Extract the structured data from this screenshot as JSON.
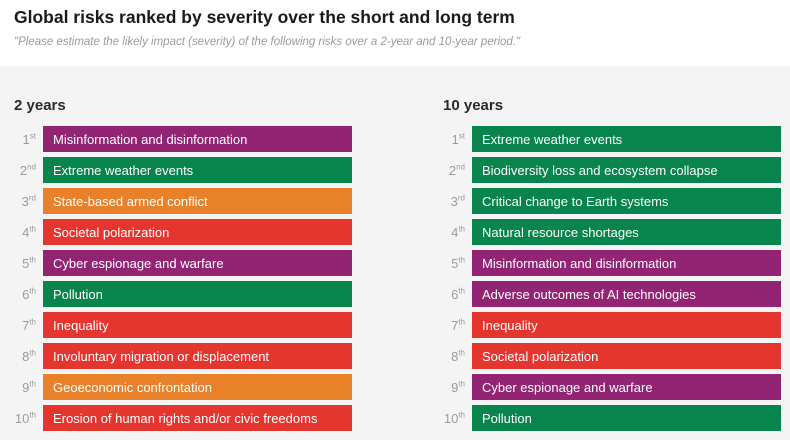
{
  "chart_data": {
    "type": "table",
    "subtype": "ranked-bar-list",
    "title": "Global risks ranked by severity over the short and long term",
    "subtitle": "\"Please estimate the likely impact (severity) of the following risks over a 2-year and 10-year period.\"",
    "panel_background": "#F4F4F5",
    "category_colors": {
      "technological_purple": "#932473",
      "environmental_green": "#07854C",
      "geopolitical_orange": "#E8812A",
      "societal_red": "#E5352F"
    },
    "panels": [
      {
        "label": "2 years",
        "items": [
          {
            "rank": "1",
            "ordinal": "st",
            "label": "Misinformation and disinformation",
            "color": "#932473"
          },
          {
            "rank": "2",
            "ordinal": "nd",
            "label": "Extreme weather events",
            "color": "#07854C"
          },
          {
            "rank": "3",
            "ordinal": "rd",
            "label": "State-based armed conflict",
            "color": "#E8812A"
          },
          {
            "rank": "4",
            "ordinal": "th",
            "label": "Societal polarization",
            "color": "#E5352F"
          },
          {
            "rank": "5",
            "ordinal": "th",
            "label": "Cyber espionage and warfare",
            "color": "#932473"
          },
          {
            "rank": "6",
            "ordinal": "th",
            "label": "Pollution",
            "color": "#07854C"
          },
          {
            "rank": "7",
            "ordinal": "th",
            "label": "Inequality",
            "color": "#E5352F"
          },
          {
            "rank": "8",
            "ordinal": "th",
            "label": "Involuntary migration or displacement",
            "color": "#E5352F"
          },
          {
            "rank": "9",
            "ordinal": "th",
            "label": "Geoeconomic confrontation",
            "color": "#E8812A"
          },
          {
            "rank": "10",
            "ordinal": "th",
            "label": "Erosion of human rights and/or civic freedoms",
            "color": "#E5352F"
          }
        ]
      },
      {
        "label": "10 years",
        "items": [
          {
            "rank": "1",
            "ordinal": "st",
            "label": "Extreme weather events",
            "color": "#07854C"
          },
          {
            "rank": "2",
            "ordinal": "nd",
            "label": "Biodiversity loss and ecosystem collapse",
            "color": "#07854C"
          },
          {
            "rank": "3",
            "ordinal": "rd",
            "label": "Critical change to Earth systems",
            "color": "#07854C"
          },
          {
            "rank": "4",
            "ordinal": "th",
            "label": "Natural resource shortages",
            "color": "#07854C"
          },
          {
            "rank": "5",
            "ordinal": "th",
            "label": "Misinformation and disinformation",
            "color": "#932473"
          },
          {
            "rank": "6",
            "ordinal": "th",
            "label": "Adverse outcomes of AI technologies",
            "color": "#932473"
          },
          {
            "rank": "7",
            "ordinal": "th",
            "label": "Inequality",
            "color": "#E5352F"
          },
          {
            "rank": "8",
            "ordinal": "th",
            "label": "Societal polarization",
            "color": "#E5352F"
          },
          {
            "rank": "9",
            "ordinal": "th",
            "label": "Cyber espionage and warfare",
            "color": "#932473"
          },
          {
            "rank": "10",
            "ordinal": "th",
            "label": "Pollution",
            "color": "#07854C"
          }
        ]
      }
    ]
  }
}
